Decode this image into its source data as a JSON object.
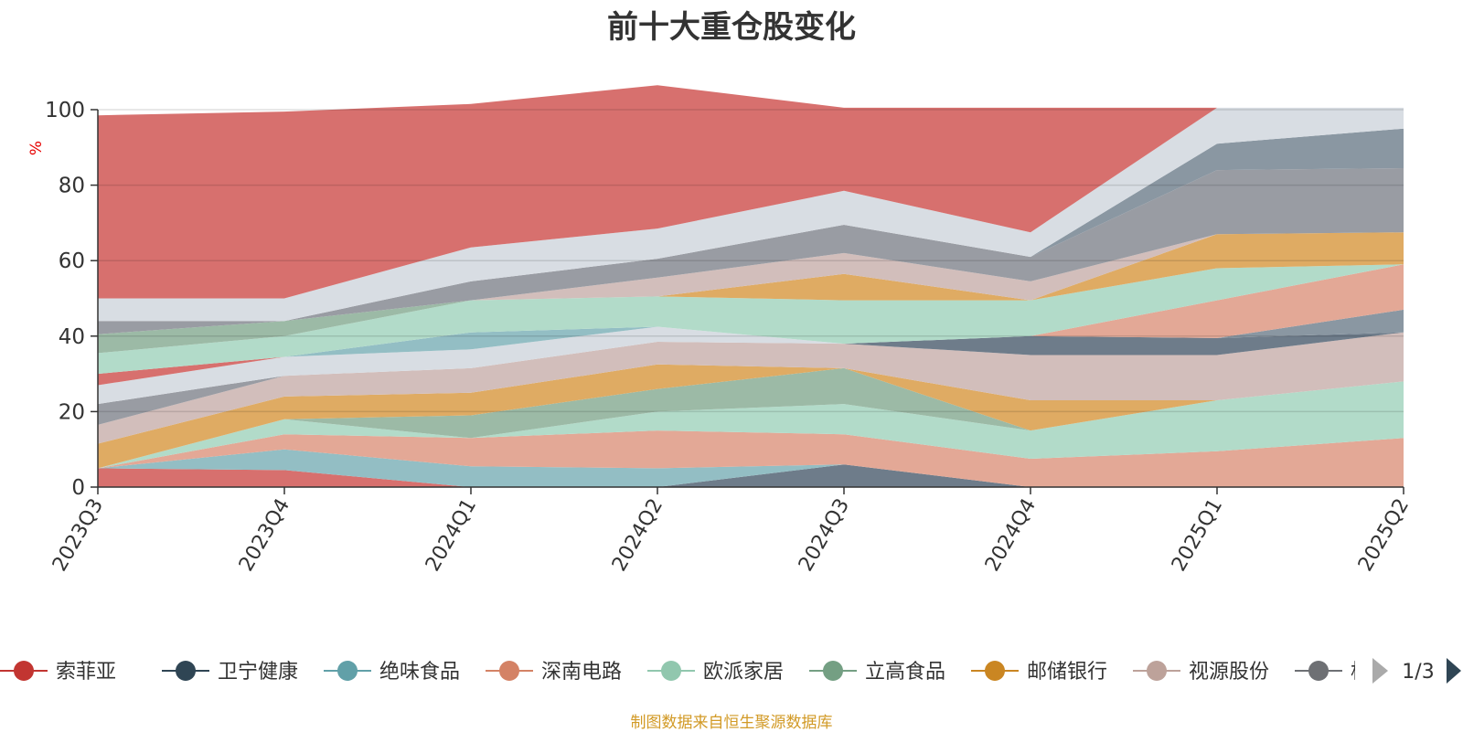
{
  "title": "前十大重仓股变化",
  "footer": "制图数据来自恒生聚源数据库",
  "legend": {
    "items": [
      {
        "name": "索菲亚",
        "color": "#c23531"
      },
      {
        "name": "卫宁健康",
        "color": "#2f4554"
      },
      {
        "name": "绝味食品",
        "color": "#61a0a8"
      },
      {
        "name": "深南电路",
        "color": "#d48265"
      },
      {
        "name": "欧派家居",
        "color": "#91c7ae"
      },
      {
        "name": "立高食品",
        "color": "#749f83"
      },
      {
        "name": "邮储银行",
        "color": "#ca8622"
      },
      {
        "name": "视源股份",
        "color": "#bda29a"
      },
      {
        "name": "格力",
        "color": "#6e7074"
      }
    ],
    "page_label": "1/3"
  },
  "chart_data": {
    "type": "area",
    "stacked": true,
    "categories": [
      "2023Q3",
      "2023Q4",
      "2024Q1",
      "2024Q2",
      "2024Q3",
      "2024Q4",
      "2025Q1",
      "2025Q2"
    ],
    "ylabel": "%",
    "ylim": [
      0,
      100
    ],
    "yticks": [
      0,
      20,
      40,
      60,
      80,
      100
    ],
    "grid": true,
    "legend_position": "bottom",
    "series": [
      {
        "color": "#6e7c8a",
        "values": [
          0,
          0,
          0,
          0,
          6,
          0,
          0,
          0
        ]
      },
      {
        "color": "#d7706e",
        "values": [
          5,
          4.5,
          0,
          0,
          0,
          0,
          0,
          0
        ]
      },
      {
        "color": "#93bec4",
        "values": [
          0,
          5.5,
          5.5,
          5,
          0,
          0,
          0,
          0
        ]
      },
      {
        "color": "#e3a896",
        "values": [
          0,
          4,
          7.5,
          10,
          8,
          7.5,
          9.5,
          13
        ]
      },
      {
        "color": "#b2dbc9",
        "values": [
          0,
          4,
          0,
          5,
          8,
          7.5,
          13.5,
          15
        ]
      },
      {
        "color": "#9cbaa6",
        "values": [
          0,
          0,
          6,
          6,
          9.5,
          0,
          0,
          0
        ]
      },
      {
        "color": "#dfab63",
        "values": [
          6.5,
          6,
          6,
          6.5,
          0,
          8,
          0,
          0
        ]
      },
      {
        "color": "#d2bebb",
        "values": [
          5,
          5.5,
          6.5,
          6,
          6.5,
          12,
          12,
          13
        ]
      },
      {
        "color": "#999ca3",
        "values": [
          5.5,
          0,
          0,
          0,
          0,
          0,
          0,
          0
        ]
      },
      {
        "color": "#d8dde3",
        "values": [
          5,
          5,
          5,
          4,
          0,
          0,
          0,
          0
        ]
      },
      {
        "color": "#d7706e",
        "values": [
          3,
          0,
          0,
          0,
          0,
          0,
          0,
          0
        ]
      },
      {
        "color": "#6e7c8a",
        "values": [
          0,
          0,
          0,
          0,
          0,
          5,
          4.5,
          0
        ]
      },
      {
        "color": "#8a97a2",
        "values": [
          0,
          0,
          0,
          0,
          0,
          0,
          0,
          6
        ]
      },
      {
        "color": "#e3a896",
        "values": [
          0,
          0,
          0,
          0,
          0,
          0,
          10,
          12
        ]
      },
      {
        "color": "#93bec4",
        "values": [
          0,
          0,
          4.5,
          0,
          0,
          0,
          0,
          0
        ]
      },
      {
        "color": "#b2dbc9",
        "values": [
          5.5,
          5.5,
          8.5,
          8,
          11.5,
          9.5,
          8.5,
          0
        ]
      },
      {
        "color": "#9cbaa6",
        "values": [
          5,
          4,
          0,
          0,
          0,
          0,
          0,
          0
        ]
      },
      {
        "color": "#dfab63",
        "values": [
          0,
          0,
          0,
          0,
          7,
          0,
          9,
          8.5
        ]
      },
      {
        "color": "#d2bebb",
        "values": [
          0,
          0,
          0,
          5,
          5.5,
          5,
          0,
          0
        ]
      },
      {
        "color": "#999ca3",
        "values": [
          3.5,
          0,
          5,
          5,
          7.5,
          6.5,
          17,
          17
        ]
      },
      {
        "color": "#8a97a2",
        "values": [
          0,
          0,
          0,
          0,
          0,
          0,
          7,
          10.5
        ]
      },
      {
        "color": "#d8dde3",
        "values": [
          6,
          6,
          9,
          8,
          9,
          6.5,
          9.5,
          5.5
        ]
      },
      {
        "color": "#d7706e",
        "values": [
          48.5,
          49.5,
          38,
          38,
          22,
          33,
          0,
          0
        ]
      }
    ]
  }
}
